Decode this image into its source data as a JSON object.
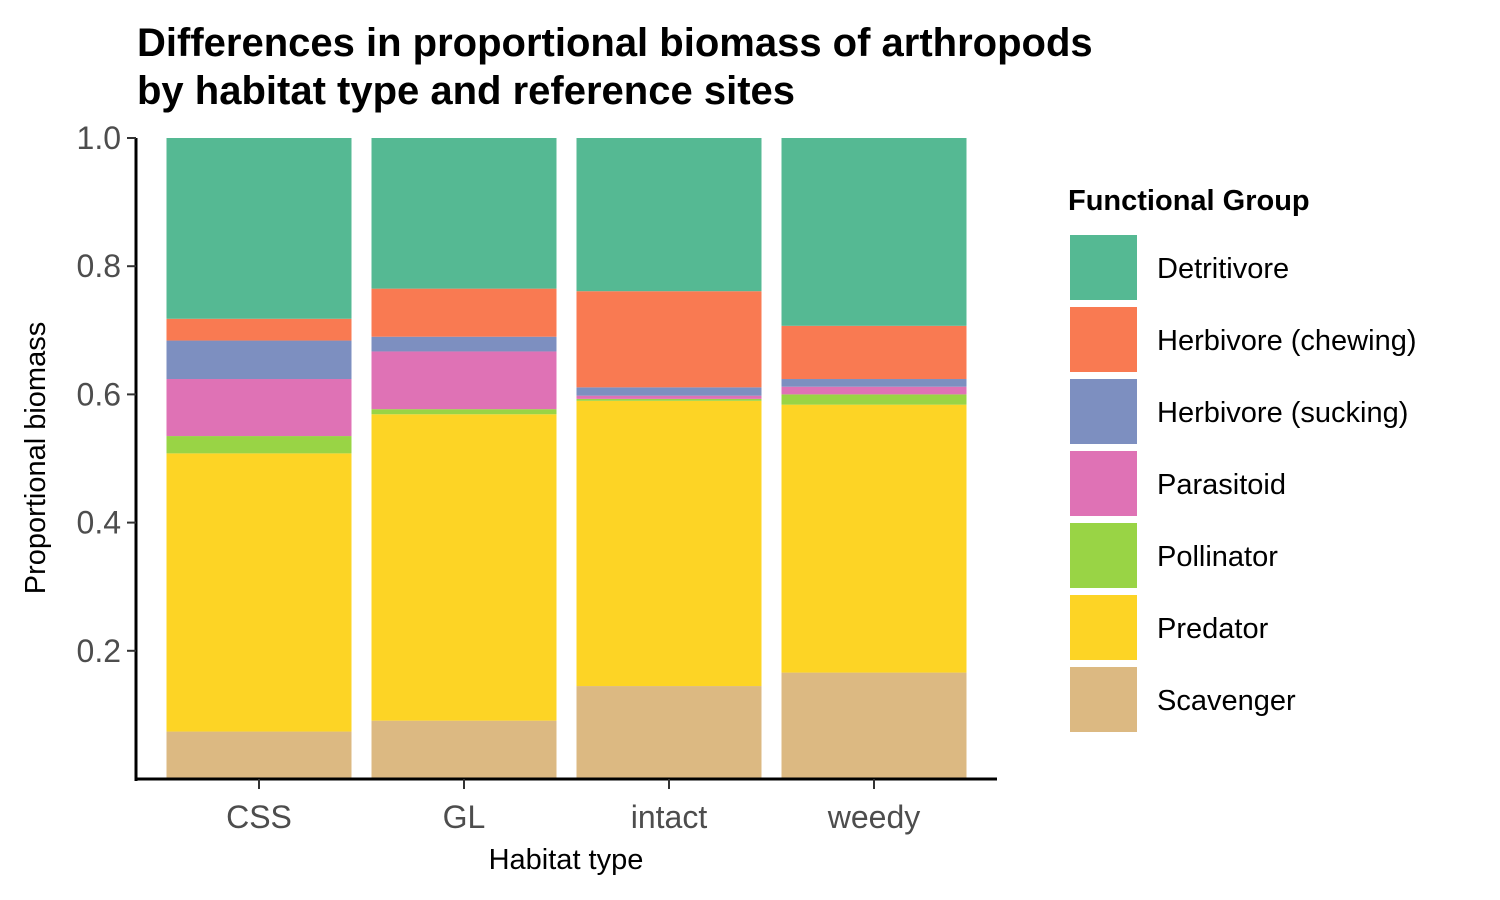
{
  "chart_data": {
    "type": "bar",
    "stacked": true,
    "title_lines": [
      "Differences in proportional biomass of arthropods",
      "by habitat type and reference sites"
    ],
    "xlabel": "Habitat type",
    "ylabel": "Proportional biomass",
    "ylim": [
      0,
      1
    ],
    "yticks": [
      "0.2",
      "0.4",
      "0.6",
      "0.8",
      "1.0"
    ],
    "categories": [
      "CSS",
      "GL",
      "intact",
      "weedy"
    ],
    "legend": {
      "title": "Functional Group",
      "position": "right"
    },
    "grid": false,
    "series": [
      {
        "name": "Detritivore",
        "color": "#55b993",
        "values": [
          0.282,
          0.235,
          0.239,
          0.293
        ]
      },
      {
        "name": "Herbivore (chewing)",
        "color": "#f97a52",
        "values": [
          0.034,
          0.075,
          0.15,
          0.083
        ]
      },
      {
        "name": "Herbivore (sucking)",
        "color": "#7d8fc0",
        "values": [
          0.06,
          0.023,
          0.013,
          0.012
        ]
      },
      {
        "name": "Parasitoid",
        "color": "#df72b5",
        "values": [
          0.089,
          0.09,
          0.005,
          0.012
        ]
      },
      {
        "name": "Pollinator",
        "color": "#99d445",
        "values": [
          0.027,
          0.008,
          0.003,
          0.016
        ]
      },
      {
        "name": "Predator",
        "color": "#fdd425",
        "values": [
          0.434,
          0.478,
          0.445,
          0.418
        ]
      },
      {
        "name": "Scavenger",
        "color": "#dcb982",
        "values": [
          0.074,
          0.091,
          0.145,
          0.166
        ]
      }
    ]
  }
}
